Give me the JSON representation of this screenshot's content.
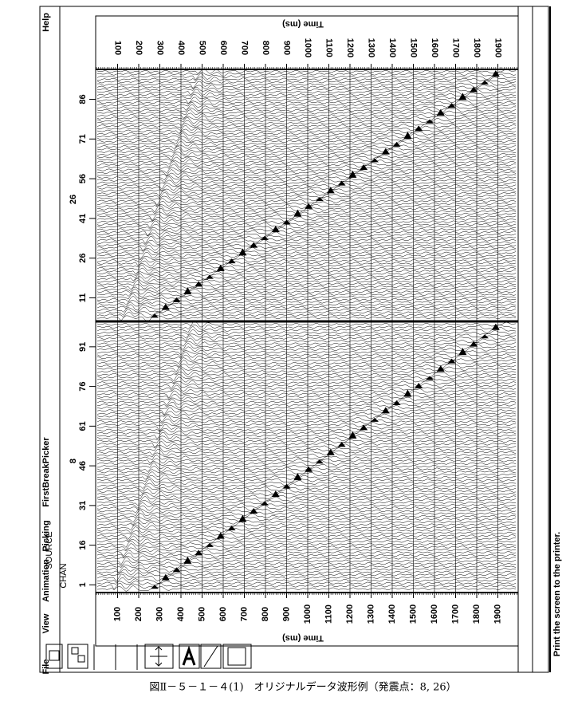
{
  "menu": {
    "items": [
      "File",
      "View",
      "Animation",
      "Picking",
      "FirstBreakPicker"
    ],
    "help": "Help"
  },
  "time_axis": {
    "title": "Time (ms)",
    "lim": [
      0,
      2000
    ],
    "ticks": [
      100,
      200,
      300,
      400,
      500,
      600,
      700,
      800,
      900,
      1000,
      1100,
      1200,
      1300,
      1400,
      1500,
      1600,
      1700,
      1800,
      1900
    ]
  },
  "panels": [
    {
      "source": "26",
      "channel_lim": [
        3,
        97
      ],
      "channel_ticks": [
        11,
        26,
        41,
        56,
        71,
        86
      ]
    },
    {
      "source_label": "SOURCE",
      "channel_label": "CHAN",
      "source": "8",
      "channel_lim": [
        -1,
        100
      ],
      "channel_ticks": [
        1,
        16,
        31,
        46,
        61,
        76,
        91
      ]
    }
  ],
  "status": "Print the screen to the printer.",
  "caption": "図Ⅱ－５－１－４(1)　オリジナルデータ波形例（発震点：8, 26）"
}
